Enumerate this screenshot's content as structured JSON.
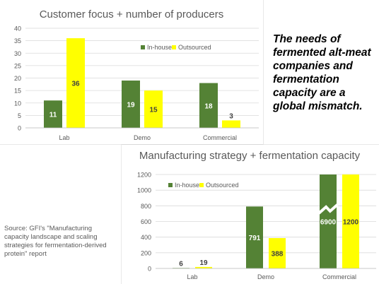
{
  "headline": "The needs of fermented alt-meat companies and fermentation capacity are a global mismatch.",
  "source": "Source: GFI's \"Manufacturing capacity landscape and scaling strategies for fermentation-derived protein\" report",
  "colors": {
    "in_house": "#548235",
    "outsourced": "#ffff00",
    "grid": "#d9d9d9",
    "axis_text": "#595959"
  },
  "chart_data": [
    {
      "type": "bar",
      "title": "Customer focus + number of producers",
      "categories": [
        "Lab",
        "Demo",
        "Commercial"
      ],
      "series": [
        {
          "name": "In-house",
          "values": [
            11,
            19,
            18
          ]
        },
        {
          "name": "Outsourced",
          "values": [
            36,
            15,
            3
          ]
        }
      ],
      "ylim": [
        0,
        40
      ],
      "yticks": [
        0,
        5,
        10,
        15,
        20,
        25,
        30,
        35,
        40
      ],
      "grid": true,
      "legend": "top-right",
      "data_labels": true
    },
    {
      "type": "bar",
      "title": "Manufacturing strategy + fermentation capacity",
      "categories": [
        "Lab",
        "Demo",
        "Commercial"
      ],
      "series": [
        {
          "name": "In-house",
          "values": [
            6,
            791,
            6900
          ]
        },
        {
          "name": "Outsourced",
          "values": [
            19,
            388,
            1200
          ]
        }
      ],
      "ylim": [
        0,
        1200
      ],
      "yticks": [
        0,
        200,
        400,
        600,
        800,
        1000,
        1200
      ],
      "axis_break": true,
      "grid": true,
      "legend": "top-left",
      "data_labels": true
    }
  ]
}
